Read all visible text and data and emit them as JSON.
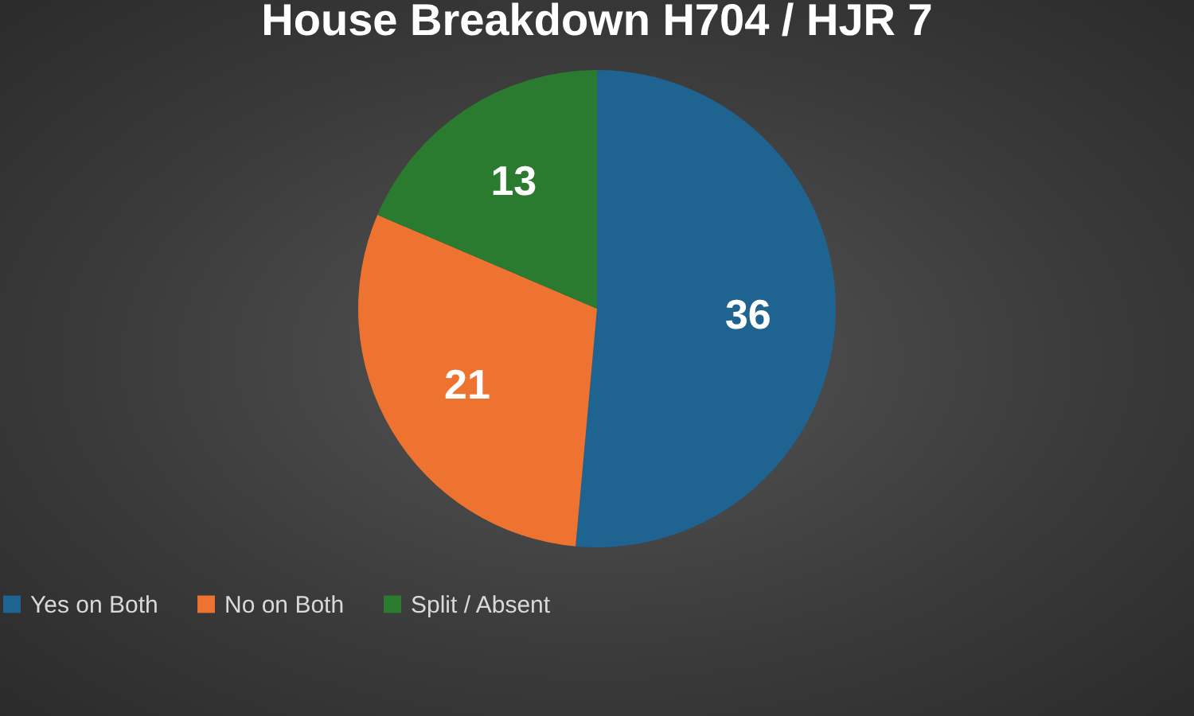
{
  "chart_data": {
    "type": "pie",
    "title": "House Breakdown H704 / HJR 7",
    "categories": [
      "Yes on Both",
      "No on Both",
      "Split / Absent"
    ],
    "values": [
      36,
      21,
      13
    ],
    "colors": [
      "#1f6391",
      "#ee7330",
      "#2a7a2f"
    ],
    "data_labels": true,
    "legend": "bottom"
  }
}
